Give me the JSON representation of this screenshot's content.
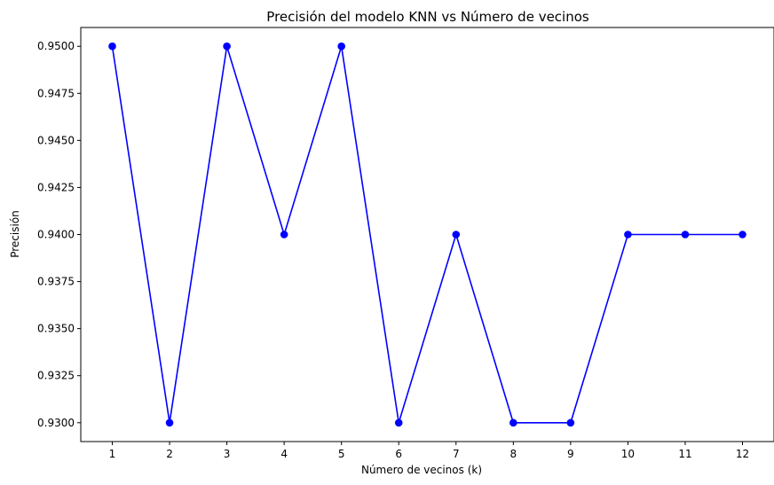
{
  "chart_data": {
    "type": "line",
    "title": "Precisión del modelo KNN vs Número de vecinos",
    "xlabel": "Número de vecinos (k)",
    "ylabel": "Precisión",
    "x": [
      1,
      2,
      3,
      4,
      5,
      6,
      7,
      8,
      9,
      10,
      11,
      12
    ],
    "xticks": [
      "1",
      "2",
      "3",
      "4",
      "5",
      "6",
      "7",
      "8",
      "9",
      "10",
      "11",
      "12"
    ],
    "yticks": [
      "0.9300",
      "0.9325",
      "0.9350",
      "0.9375",
      "0.9400",
      "0.9425",
      "0.9450",
      "0.9475",
      "0.9500"
    ],
    "xlim": [
      0.45,
      12.55
    ],
    "ylim": [
      0.929,
      0.951
    ],
    "grid": false,
    "legend": "none",
    "series": [
      {
        "color": "#0000ff",
        "marker": "circle",
        "values": [
          0.95,
          0.93,
          0.95,
          0.94,
          0.95,
          0.93,
          0.94,
          0.93,
          0.93,
          0.94,
          0.94,
          0.94
        ]
      }
    ]
  }
}
